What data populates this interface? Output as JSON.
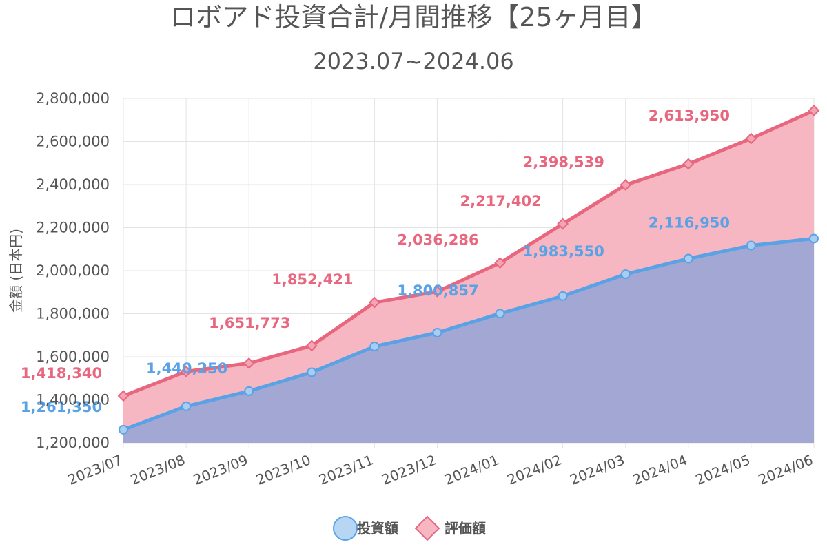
{
  "title": "ロボアド投資合計/月間推移【25ヶ月目】",
  "subtitle": "2023.07~2024.06",
  "colors": {
    "invest_line": "#5aa2e6",
    "invest_fill": "#a2a8d3",
    "eval_line": "#e8677f",
    "eval_fill": "#f6b6c2",
    "grid": "#e3e3e3",
    "text": "#555555"
  },
  "chart_data": {
    "type": "area",
    "ylabel": "金額 (日本円)",
    "ylim": [
      1200000,
      2800000
    ],
    "yticks": [
      1200000,
      1400000,
      1600000,
      1800000,
      2000000,
      2200000,
      2400000,
      2600000,
      2800000
    ],
    "ytick_labels": [
      "1,200,000",
      "1,400,000",
      "1,600,000",
      "1,800,000",
      "2,000,000",
      "2,200,000",
      "2,400,000",
      "2,600,000",
      "2,800,000"
    ],
    "grid": true,
    "legend_position": "bottom",
    "categories": [
      "2023/07",
      "2023/08",
      "2023/09",
      "2023/10",
      "2023/11",
      "2023/12",
      "2024/01",
      "2024/02",
      "2024/03",
      "2024/04",
      "2024/05",
      "2024/06"
    ],
    "series": [
      {
        "name": "投資額",
        "marker": "circle",
        "values": [
          1261350,
          1370000,
          1440250,
          1528000,
          1648000,
          1712000,
          1800857,
          1882000,
          1983550,
          2056000,
          2116950,
          2149000
        ],
        "labels": [
          "1,261,350",
          "",
          "1,440,250",
          "",
          "",
          "",
          "1,800,857",
          "",
          "1,983,550",
          "",
          "2,116,950",
          ""
        ]
      },
      {
        "name": "評価額",
        "marker": "diamond",
        "values": [
          1418340,
          1532000,
          1570000,
          1651773,
          1852421,
          1903000,
          2036286,
          2217402,
          2398539,
          2496000,
          2613950,
          2744000
        ],
        "labels": [
          "1,418,340",
          "",
          "",
          "1,651,773",
          "1,852,421",
          "",
          "2,036,286",
          "2,217,402",
          "2,398,539",
          "",
          "2,613,950",
          ""
        ]
      }
    ]
  }
}
